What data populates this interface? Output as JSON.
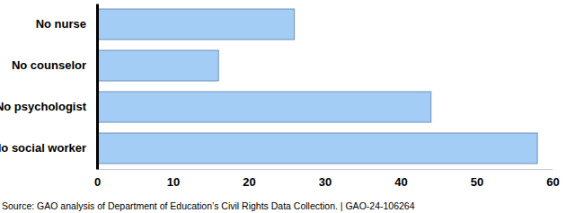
{
  "chart_data": {
    "type": "bar",
    "orientation": "horizontal",
    "categories": [
      "No nurse",
      "No counselor",
      "No psychologist",
      "No social worker"
    ],
    "values": [
      26,
      16,
      44,
      58
    ],
    "color": "#a3cdf5",
    "xlim": [
      0,
      60
    ],
    "xticks": [
      0,
      10,
      20,
      30,
      40,
      50,
      60
    ],
    "grid": false,
    "annotations": [
      "Source: GAO analysis of Department of Education’s Civil Rights Data Collection.  |  GAO-24-106264"
    ]
  }
}
